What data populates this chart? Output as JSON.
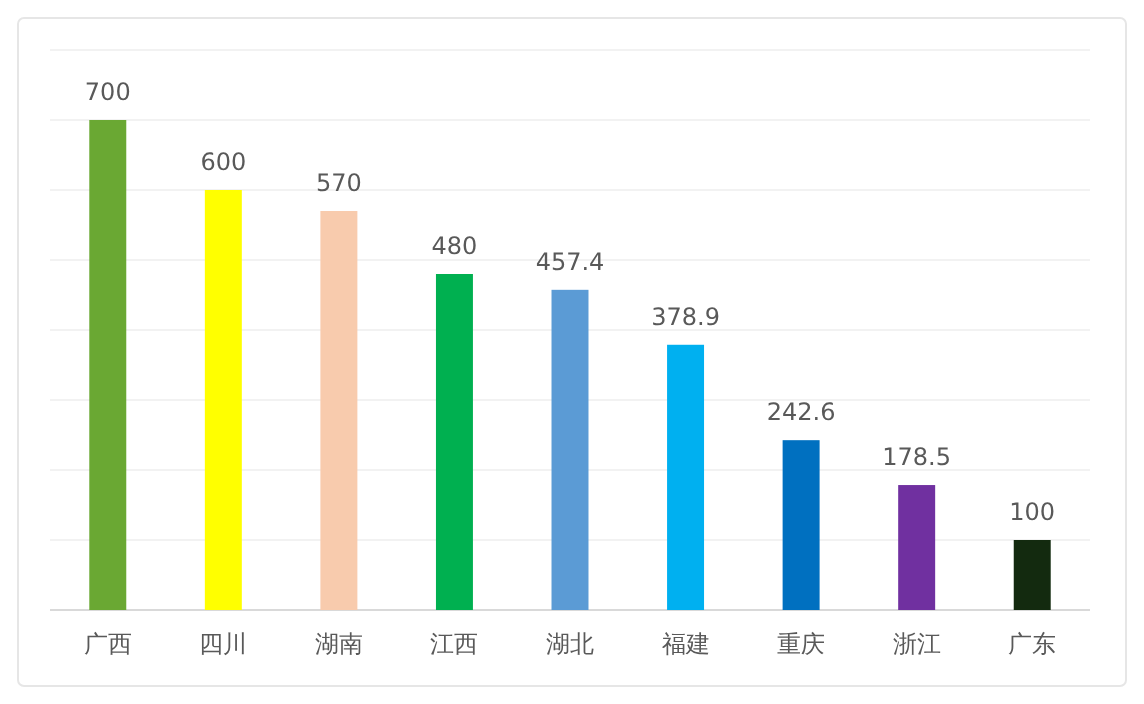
{
  "chart_data": {
    "type": "bar",
    "categories": [
      "广西",
      "四川",
      "湖南",
      "江西",
      "湖北",
      "福建",
      "重庆",
      "浙江",
      "广东"
    ],
    "values": [
      700,
      600,
      570,
      480,
      457.4,
      378.9,
      242.6,
      178.5,
      100
    ],
    "colors": [
      "#6aa833",
      "#ffff00",
      "#f8cbad",
      "#00b050",
      "#5b9bd5",
      "#00b0f0",
      "#0070c0",
      "#7030a0",
      "#132a0f"
    ],
    "ylim": [
      0,
      800
    ],
    "yticks": [
      {
        "value": 0,
        "label": null
      },
      {
        "value": 100,
        "label": null
      },
      {
        "value": 200,
        "label": null
      },
      {
        "value": 300,
        "label": null
      },
      {
        "value": 400,
        "label": null
      },
      {
        "value": 500,
        "label": null
      },
      {
        "value": 600,
        "label": null
      },
      {
        "value": 700,
        "label": null
      },
      {
        "value": 800,
        "label": null
      }
    ],
    "tick_labels": "x",
    "grid": "y",
    "data_labels": true
  }
}
